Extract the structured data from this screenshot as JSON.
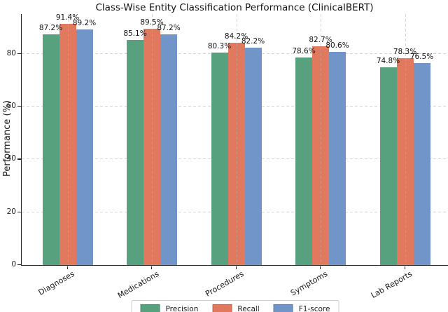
{
  "chart_data": {
    "type": "bar",
    "title": "Class-Wise Entity Classification Performance (ClinicalBERT)",
    "xlabel": "",
    "ylabel": "Performance (%)",
    "categories": [
      "Diagnoses",
      "Medications",
      "Procedures",
      "Symptoms",
      "Lab Reports"
    ],
    "series": [
      {
        "name": "Precision",
        "color": "#58a17f",
        "values": [
          87.2,
          85.1,
          80.3,
          78.6,
          74.8
        ]
      },
      {
        "name": "Recall",
        "color": "#e0795e",
        "values": [
          91.4,
          89.5,
          84.2,
          82.7,
          78.3
        ]
      },
      {
        "name": "F1-score",
        "color": "#7195c8",
        "values": [
          89.2,
          87.2,
          82.2,
          80.6,
          76.5
        ]
      }
    ],
    "value_label_suffix": "%",
    "yticks": [
      0,
      20,
      40,
      60,
      80
    ],
    "ylim": [
      0,
      95
    ],
    "grid": "dashed",
    "legend_position": "bottom-center",
    "legend_labels": [
      "Precision",
      "Recall",
      "F1-score"
    ]
  }
}
